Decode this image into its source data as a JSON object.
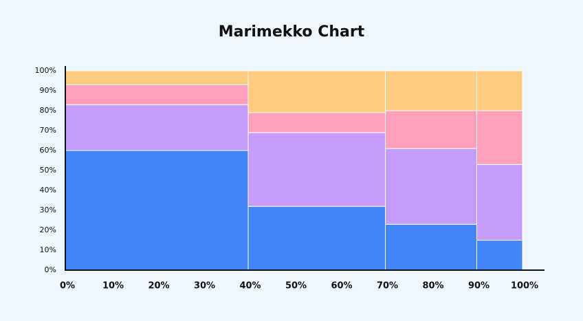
{
  "chart_data": {
    "type": "marimekko",
    "title": "Marimekko Chart",
    "widths": [
      40,
      30,
      20,
      10
    ],
    "series": [
      {
        "color": "#4285f4",
        "values": [
          60,
          32,
          23,
          15
        ]
      },
      {
        "color": "#c39cfc",
        "values": [
          23,
          37,
          38,
          38
        ]
      },
      {
        "color": "#ffa0bb",
        "values": [
          10,
          10,
          19,
          27
        ]
      },
      {
        "color": "#ffcb7e",
        "values": [
          7,
          21,
          20,
          20
        ]
      }
    ],
    "xlim": [
      0,
      100
    ],
    "xticks": [
      {
        "value": 0,
        "label": "0%"
      },
      {
        "value": 10,
        "label": "10%"
      },
      {
        "value": 20,
        "label": "20%"
      },
      {
        "value": 30,
        "label": "30%"
      },
      {
        "value": 40,
        "label": "40%"
      },
      {
        "value": 50,
        "label": "50%"
      },
      {
        "value": 60,
        "label": "60%"
      },
      {
        "value": 70,
        "label": "70%"
      },
      {
        "value": 80,
        "label": "80%"
      },
      {
        "value": 90,
        "label": "90%"
      },
      {
        "value": 100,
        "label": "100%"
      }
    ],
    "ylim": [
      0,
      100
    ],
    "yticks": [
      {
        "value": 0,
        "label": "0%"
      },
      {
        "value": 10,
        "label": "10%"
      },
      {
        "value": 20,
        "label": "20%"
      },
      {
        "value": 30,
        "label": "30%"
      },
      {
        "value": 40,
        "label": "40%"
      },
      {
        "value": 50,
        "label": "50%"
      },
      {
        "value": 60,
        "label": "60%"
      },
      {
        "value": 70,
        "label": "70%"
      },
      {
        "value": 80,
        "label": "80%"
      },
      {
        "value": 90,
        "label": "90%"
      },
      {
        "value": 100,
        "label": "100%"
      }
    ]
  }
}
